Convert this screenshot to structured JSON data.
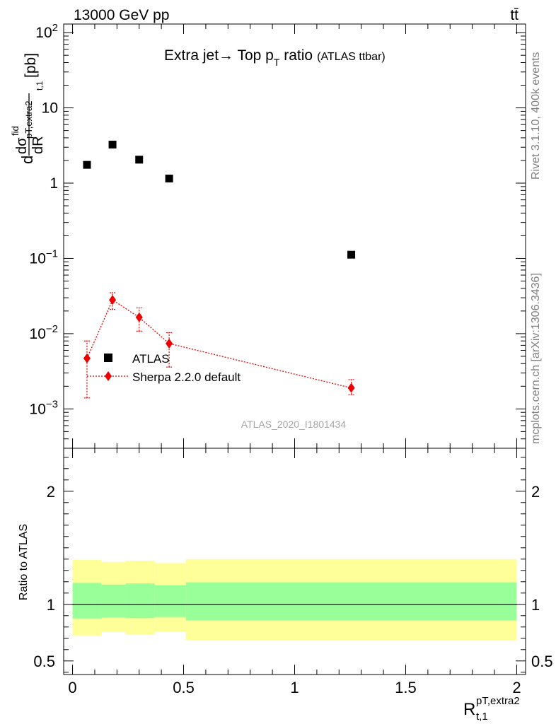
{
  "header": {
    "energy": "13000 GeV pp",
    "process": "tt̄"
  },
  "side_labels": {
    "rivet": "Rivet 3.1.10,  400k events",
    "mcplots": "mcplots.cern.ch [arXiv:1306.3436]"
  },
  "chart_data": [
    {
      "type": "scatter",
      "panel": "main",
      "title": {
        "main": "Extra jet→ Top p",
        "sub": "T",
        "tail": " ratio",
        "note": "(ATLAS ttbar)"
      },
      "ylabel_parts": {
        "d1": "d",
        "num": "dσ",
        "num_sup": "fid",
        "num_sub": "pT,extra2",
        "den": "dR",
        "den_sub": "t,1",
        "unit": "[pb]"
      },
      "y_scale": "log",
      "ylim": [
        0.0003,
        130
      ],
      "xlim": [
        -0.04,
        2.04
      ],
      "y_tick_labels": [
        {
          "value": 0.001,
          "base": "10",
          "exp": "−3"
        },
        {
          "value": 0.01,
          "base": "10",
          "exp": "−2"
        },
        {
          "value": 0.1,
          "base": "10",
          "exp": "−1"
        },
        {
          "value": 1,
          "base": "1",
          "exp": ""
        },
        {
          "value": 10,
          "base": "10",
          "exp": ""
        },
        {
          "value": 100,
          "base": "10",
          "exp": "2"
        }
      ],
      "series": [
        {
          "name": "ATLAS",
          "color": "#000000",
          "marker": "square",
          "points": [
            {
              "x": 0.065,
              "y": 1.75
            },
            {
              "x": 0.18,
              "y": 3.25
            },
            {
              "x": 0.3,
              "y": 2.05
            },
            {
              "x": 0.435,
              "y": 1.15
            },
            {
              "x": 1.255,
              "y": 0.112
            }
          ]
        },
        {
          "name": "Sherpa 2.2.0 default",
          "color": "#ee0000",
          "marker": "diamond",
          "line": "dotted",
          "points": [
            {
              "x": 0.065,
              "y": 0.0047,
              "ylo": 0.0014,
              "yhi": 0.008
            },
            {
              "x": 0.18,
              "y": 0.028,
              "ylo": 0.021,
              "yhi": 0.035
            },
            {
              "x": 0.3,
              "y": 0.0165,
              "ylo": 0.0108,
              "yhi": 0.022
            },
            {
              "x": 0.435,
              "y": 0.0074,
              "ylo": 0.0036,
              "yhi": 0.0103
            },
            {
              "x": 1.255,
              "y": 0.0019,
              "ylo": 0.00155,
              "yhi": 0.00245
            }
          ]
        }
      ],
      "legend_position": "lower-left",
      "watermark": "ATLAS_2020_I1801434"
    },
    {
      "type": "area",
      "panel": "ratio",
      "ylabel": "Ratio to ATLAS",
      "xlabel_parts": {
        "base": "R",
        "sup": "pT,extra2",
        "sub": "t,1"
      },
      "xlim": [
        -0.04,
        2.04
      ],
      "ylim": [
        0.38,
        2.38
      ],
      "y_ticks": [
        "0.5",
        "1",
        "2"
      ],
      "x_ticks": [
        "0",
        "0.5",
        "1",
        "1.5",
        "2"
      ],
      "reference_line": 1,
      "bands": [
        {
          "name": "inner",
          "color": "#99ff99"
        },
        {
          "name": "outer",
          "color": "#ffff99"
        }
      ],
      "bins": [
        {
          "x0": 0.0,
          "x1": 0.13,
          "inner": [
            0.875,
            1.19
          ],
          "outer": [
            0.725,
            1.395
          ]
        },
        {
          "x0": 0.13,
          "x1": 0.24,
          "inner": [
            0.885,
            1.175
          ],
          "outer": [
            0.755,
            1.375
          ]
        },
        {
          "x0": 0.24,
          "x1": 0.37,
          "inner": [
            0.878,
            1.185
          ],
          "outer": [
            0.732,
            1.385
          ]
        },
        {
          "x0": 0.37,
          "x1": 0.51,
          "inner": [
            0.888,
            1.17
          ],
          "outer": [
            0.758,
            1.365
          ]
        },
        {
          "x0": 0.51,
          "x1": 2.0,
          "inner": [
            0.86,
            1.195
          ],
          "outer": [
            0.682,
            1.4
          ]
        }
      ]
    }
  ]
}
